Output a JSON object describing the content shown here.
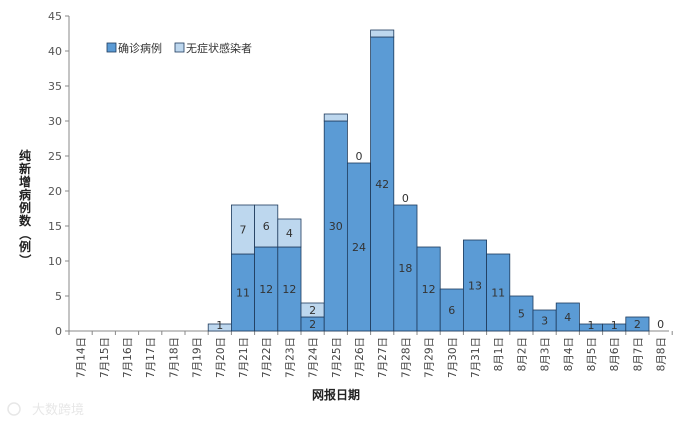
{
  "chart_data": {
    "type": "bar",
    "stacked": true,
    "xlabel": "网报日期",
    "ylabel": "纯新增病例数（例）",
    "ylim": [
      0,
      45
    ],
    "yticks": [
      0,
      5,
      10,
      15,
      20,
      25,
      30,
      35,
      40,
      45
    ],
    "categories": [
      "7月14日",
      "7月15日",
      "7月16日",
      "7月17日",
      "7月18日",
      "7月19日",
      "7月20日",
      "7月21日",
      "7月22日",
      "7月23日",
      "7月24日",
      "7月25日",
      "7月26日",
      "7月27日",
      "7月28日",
      "7月29日",
      "7月30日",
      "7月31日",
      "8月1日",
      "8月2日",
      "8月3日",
      "8月4日",
      "8月5日",
      "8月6日",
      "8月7日",
      "8月8日"
    ],
    "series": [
      {
        "name": "确诊病例",
        "color": "#5b9bd5",
        "values": [
          0,
          0,
          0,
          0,
          0,
          0,
          0,
          11,
          12,
          12,
          2,
          30,
          24,
          42,
          18,
          12,
          6,
          13,
          11,
          5,
          3,
          4,
          1,
          1,
          2,
          0
        ]
      },
      {
        "name": "无症状感染者",
        "color": "#bdd7ee",
        "values": [
          0,
          0,
          0,
          0,
          0,
          0,
          1,
          7,
          6,
          4,
          2,
          1,
          0,
          1,
          0,
          0,
          0,
          0,
          0,
          0,
          0,
          0,
          0,
          0,
          0,
          0
        ]
      }
    ],
    "data_labels": [
      {
        "series": "确诊病例",
        "values": [
          "",
          "",
          "",
          "",
          "",
          "",
          "",
          "11",
          "12",
          "12",
          "2",
          "30",
          "24",
          "42",
          "18",
          "12",
          "6",
          "13",
          "11",
          "5",
          "3",
          "4",
          "1",
          "1",
          "2",
          "0"
        ]
      },
      {
        "series": "无症状感染者",
        "values": [
          "",
          "",
          "",
          "",
          "",
          "",
          "1",
          "7",
          "6",
          "4",
          "2",
          "",
          "0",
          "",
          "0",
          "",
          "",
          "",
          "",
          "",
          "",
          "",
          "",
          "",
          "",
          ""
        ]
      }
    ],
    "legend_position": "top-left",
    "grid": false
  },
  "watermark": "大数跨境"
}
